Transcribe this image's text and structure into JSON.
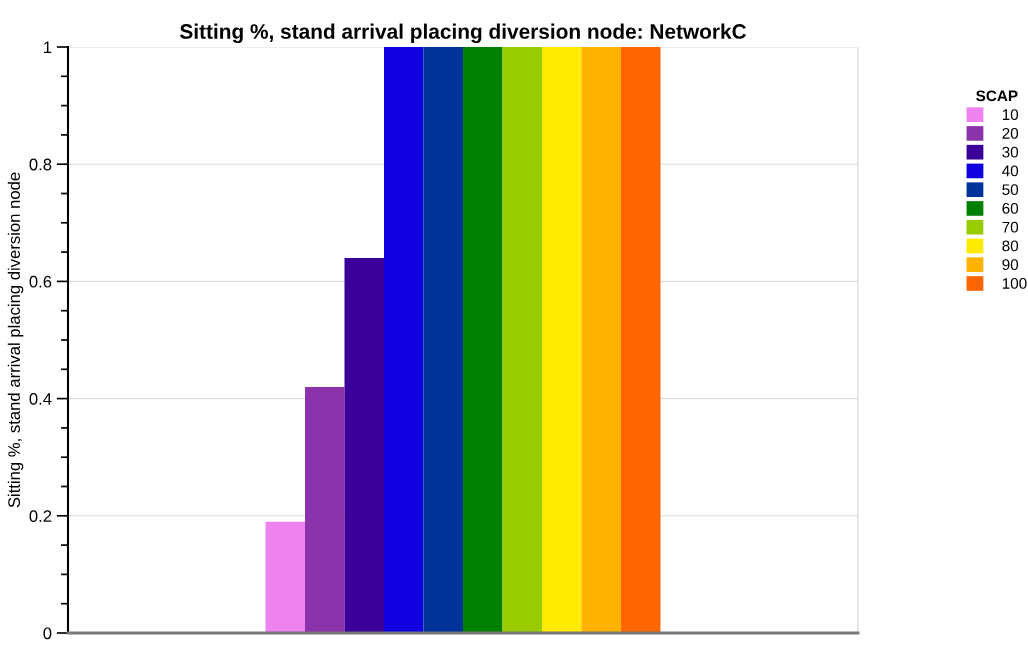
{
  "chart_data": {
    "type": "bar",
    "title": "Sitting %, stand arrival placing diversion node: NetworkC",
    "ylabel": "Sitting %, stand arrival placing diversion node",
    "legend_title": "SCAP",
    "categories": [
      null
    ],
    "series": [
      {
        "name": "10",
        "color": "#ee82ee",
        "values": [
          0.19
        ]
      },
      {
        "name": "20",
        "color": "#8b33ab",
        "values": [
          0.42
        ]
      },
      {
        "name": "30",
        "color": "#3a0099",
        "values": [
          0.64
        ]
      },
      {
        "name": "40",
        "color": "#1000e0",
        "values": [
          1
        ]
      },
      {
        "name": "50",
        "color": "#003399",
        "values": [
          1
        ]
      },
      {
        "name": "60",
        "color": "#008000",
        "values": [
          1
        ]
      },
      {
        "name": "70",
        "color": "#99cc00",
        "values": [
          1
        ]
      },
      {
        "name": "80",
        "color": "#ffea00",
        "values": [
          1
        ]
      },
      {
        "name": "90",
        "color": "#ffb300",
        "values": [
          1
        ]
      },
      {
        "name": "100",
        "color": "#ff6600",
        "values": [
          1
        ]
      }
    ],
    "ylim": [
      0,
      1
    ],
    "yticks": [
      0,
      0.2,
      0.4,
      0.6,
      0.8,
      1
    ],
    "grid": true,
    "legend": "top right"
  }
}
